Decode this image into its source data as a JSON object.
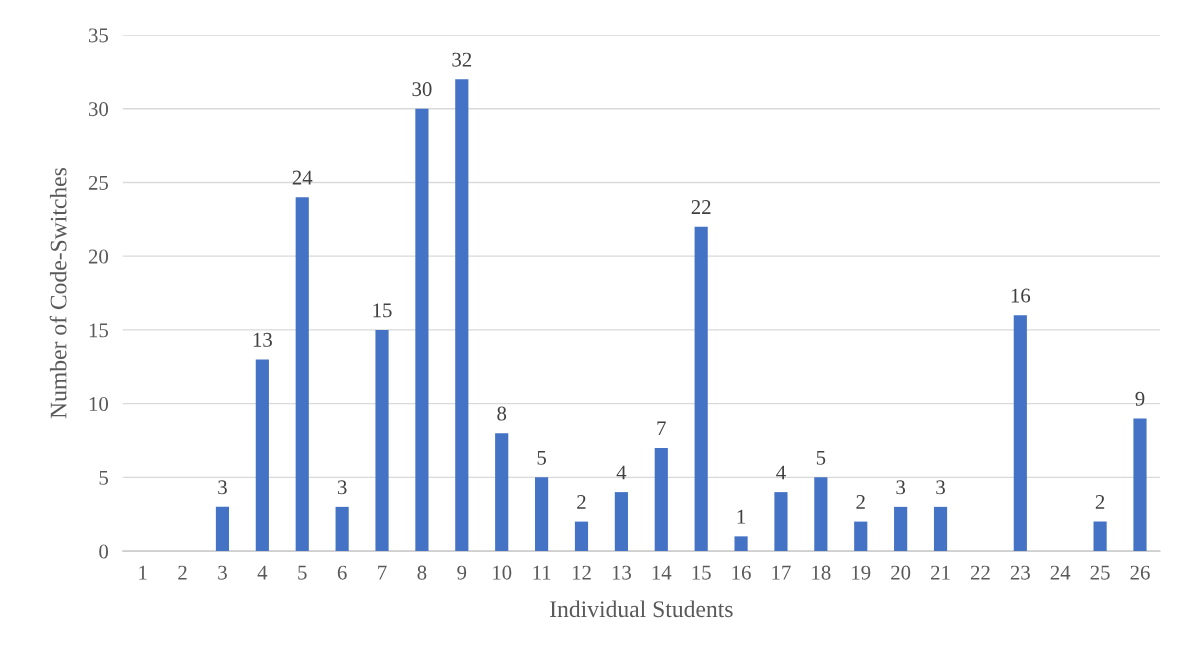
{
  "chart_data": {
    "type": "bar",
    "xlabel": "Individual Students",
    "ylabel": "Number of Code-Switches",
    "categories": [
      "1",
      "2",
      "3",
      "4",
      "5",
      "6",
      "7",
      "8",
      "9",
      "10",
      "11",
      "12",
      "13",
      "14",
      "15",
      "16",
      "17",
      "18",
      "19",
      "20",
      "21",
      "22",
      "23",
      "24",
      "25",
      "26"
    ],
    "values": [
      0,
      0,
      3,
      13,
      24,
      3,
      15,
      30,
      32,
      8,
      5,
      2,
      4,
      7,
      22,
      1,
      4,
      5,
      2,
      3,
      3,
      0,
      16,
      0,
      2,
      9
    ],
    "value_labels": [
      null,
      null,
      "3",
      "13",
      "24",
      "3",
      "15",
      "30",
      "32",
      "8",
      "5",
      "2",
      "4",
      "7",
      "22",
      "1",
      "4",
      "5",
      "2",
      "3",
      "3",
      null,
      "16",
      null,
      "2",
      "9"
    ],
    "color": "#4472c4",
    "ylim": [
      0,
      35
    ],
    "yticks": [
      0,
      5,
      10,
      15,
      20,
      25,
      30,
      35
    ],
    "grid": "y",
    "legend": false
  }
}
